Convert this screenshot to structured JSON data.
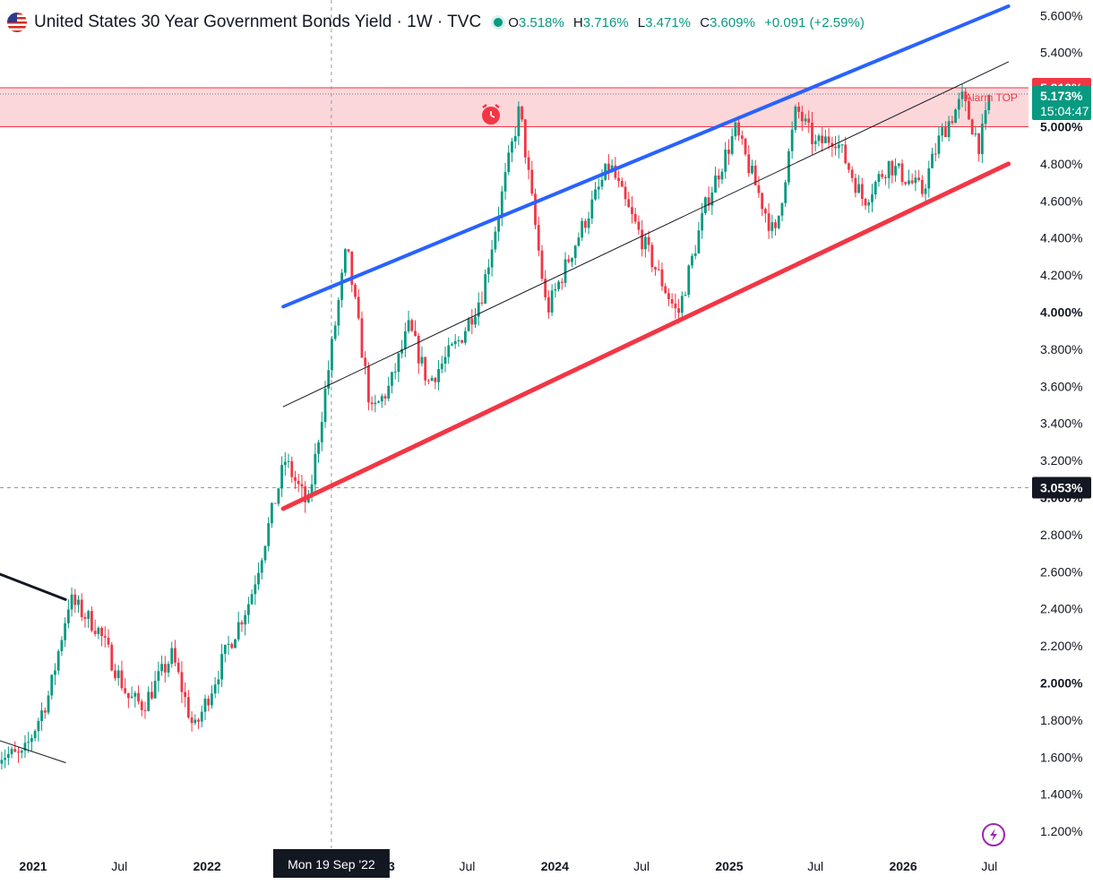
{
  "header": {
    "title": "United States 30 Year Government Bonds Yield · 1W · TVC",
    "open_label": "O",
    "open": "3.518%",
    "high_label": "H",
    "high": "3.716%",
    "low_label": "L",
    "low": "3.471%",
    "close_label": "C",
    "close": "3.609%",
    "change": "+0.091 (+2.59%)",
    "icon": "us-flag-icon",
    "status_color": "#089981"
  },
  "chart_data": {
    "type": "candlestick",
    "interval": "1W",
    "symbol": "TVC",
    "x_ticks": [
      {
        "label": "2021",
        "date": "2021-01-01",
        "bold": true
      },
      {
        "label": "Jul",
        "date": "2021-07-01",
        "bold": false
      },
      {
        "label": "2022",
        "date": "2022-01-01",
        "bold": true
      },
      {
        "label": "2023",
        "date": "2023-01-01",
        "bold": true
      },
      {
        "label": "Jul",
        "date": "2023-07-01",
        "bold": false
      },
      {
        "label": "2024",
        "date": "2024-01-01",
        "bold": true
      },
      {
        "label": "Jul",
        "date": "2024-07-01",
        "bold": false
      },
      {
        "label": "2025",
        "date": "2025-01-01",
        "bold": true
      },
      {
        "label": "Jul",
        "date": "2025-07-01",
        "bold": false
      },
      {
        "label": "2026",
        "date": "2026-01-01",
        "bold": true
      },
      {
        "label": "Jul",
        "date": "2026-07-01",
        "bold": false
      }
    ],
    "y_ticks": [
      {
        "label": "1.200%",
        "value": 1.2,
        "bold": false
      },
      {
        "label": "1.400%",
        "value": 1.4,
        "bold": false
      },
      {
        "label": "1.600%",
        "value": 1.6,
        "bold": false
      },
      {
        "label": "1.800%",
        "value": 1.8,
        "bold": false
      },
      {
        "label": "2.000%",
        "value": 2.0,
        "bold": true
      },
      {
        "label": "2.200%",
        "value": 2.2,
        "bold": false
      },
      {
        "label": "2.400%",
        "value": 2.4,
        "bold": false
      },
      {
        "label": "2.600%",
        "value": 2.6,
        "bold": false
      },
      {
        "label": "2.800%",
        "value": 2.8,
        "bold": false
      },
      {
        "label": "3.000%",
        "value": 3.0,
        "bold": true
      },
      {
        "label": "3.200%",
        "value": 3.2,
        "bold": false
      },
      {
        "label": "3.400%",
        "value": 3.4,
        "bold": false
      },
      {
        "label": "3.600%",
        "value": 3.6,
        "bold": false
      },
      {
        "label": "3.800%",
        "value": 3.8,
        "bold": false
      },
      {
        "label": "4.000%",
        "value": 4.0,
        "bold": true
      },
      {
        "label": "4.200%",
        "value": 4.2,
        "bold": false
      },
      {
        "label": "4.400%",
        "value": 4.4,
        "bold": false
      },
      {
        "label": "4.600%",
        "value": 4.6,
        "bold": false
      },
      {
        "label": "4.800%",
        "value": 4.8,
        "bold": false
      },
      {
        "label": "5.000%",
        "value": 5.0,
        "bold": true
      },
      {
        "label": "5.400%",
        "value": 5.4,
        "bold": false
      },
      {
        "label": "5.600%",
        "value": 5.6,
        "bold": false
      }
    ],
    "path_points": [
      {
        "date": "2020-10-20",
        "v": 1.62
      },
      {
        "date": "2020-12-10",
        "v": 1.6
      },
      {
        "date": "2021-02-05",
        "v": 1.95
      },
      {
        "date": "2021-03-18",
        "v": 2.45
      },
      {
        "date": "2021-05-15",
        "v": 2.3
      },
      {
        "date": "2021-07-20",
        "v": 1.92
      },
      {
        "date": "2021-08-20",
        "v": 1.88
      },
      {
        "date": "2021-10-20",
        "v": 2.15
      },
      {
        "date": "2021-12-05",
        "v": 1.74
      },
      {
        "date": "2022-02-15",
        "v": 2.2
      },
      {
        "date": "2022-04-01",
        "v": 2.45
      },
      {
        "date": "2022-06-14",
        "v": 3.2
      },
      {
        "date": "2022-08-01",
        "v": 2.95
      },
      {
        "date": "2022-10-21",
        "v": 4.35
      },
      {
        "date": "2022-12-12",
        "v": 3.45
      },
      {
        "date": "2023-01-20",
        "v": 3.6
      },
      {
        "date": "2023-03-01",
        "v": 3.92
      },
      {
        "date": "2023-04-10",
        "v": 3.62
      },
      {
        "date": "2023-06-15",
        "v": 3.85
      },
      {
        "date": "2023-08-01",
        "v": 4.1
      },
      {
        "date": "2023-10-19",
        "v": 5.1
      },
      {
        "date": "2023-12-15",
        "v": 4.0
      },
      {
        "date": "2024-02-01",
        "v": 4.3
      },
      {
        "date": "2024-04-25",
        "v": 4.8
      },
      {
        "date": "2024-05-25",
        "v": 4.6
      },
      {
        "date": "2024-09-15",
        "v": 3.98
      },
      {
        "date": "2024-11-15",
        "v": 4.6
      },
      {
        "date": "2025-01-14",
        "v": 4.98
      },
      {
        "date": "2025-04-07",
        "v": 4.4
      },
      {
        "date": "2025-05-22",
        "v": 5.1
      },
      {
        "date": "2025-07-01",
        "v": 4.9
      },
      {
        "date": "2025-08-10",
        "v": 4.95
      },
      {
        "date": "2025-10-10",
        "v": 4.6
      },
      {
        "date": "2025-12-01",
        "v": 4.8
      },
      {
        "date": "2026-02-10",
        "v": 4.65
      },
      {
        "date": "2026-03-20",
        "v": 4.95
      },
      {
        "date": "2026-05-05",
        "v": 5.15
      },
      {
        "date": "2026-06-10",
        "v": 4.9
      },
      {
        "date": "2026-07-05",
        "v": 5.17
      }
    ],
    "drawings": {
      "upper_channel": {
        "from": {
          "date": "2022-06-10",
          "v": 4.03
        },
        "to": {
          "date": "2026-08-10",
          "v": 5.65
        },
        "color": "#2962ff"
      },
      "lower_channel": {
        "from": {
          "date": "2022-06-10",
          "v": 2.94
        },
        "to": {
          "date": "2026-08-10",
          "v": 4.8
        },
        "color": "#f23645"
      },
      "middle_line": {
        "from": {
          "date": "2022-06-10",
          "v": 3.49
        },
        "to": {
          "date": "2026-08-10",
          "v": 5.35
        },
        "color": "#131722"
      },
      "left_line_upper": {
        "from": {
          "date": "2020-10-10",
          "v": 2.6
        },
        "to": {
          "date": "2021-03-10",
          "v": 2.45
        },
        "color": "#131722"
      },
      "left_line_lower": {
        "from": {
          "date": "2020-10-10",
          "v": 1.7
        },
        "to": {
          "date": "2021-03-10",
          "v": 1.57
        },
        "color": "#131722"
      },
      "zone": {
        "top": 5.21,
        "bottom": 5.0,
        "color": "#f23645"
      }
    },
    "crosshair": {
      "date": "2022-09-19",
      "value": 3.053,
      "date_label": "Mon 19 Sep '22",
      "value_label": "3.053%"
    },
    "price_labels": [
      {
        "label": "5.210%",
        "value": 5.21,
        "bg": "#f23645"
      },
      {
        "label": "5.173%",
        "value": 5.173,
        "bg": "#089981",
        "sub": "15:04:47"
      }
    ],
    "annotation": {
      "text": "Alarm TOP",
      "color": "#f23645"
    },
    "colors": {
      "up": "#089981",
      "down": "#f23645"
    },
    "bottom_icon": "lightning-icon"
  }
}
